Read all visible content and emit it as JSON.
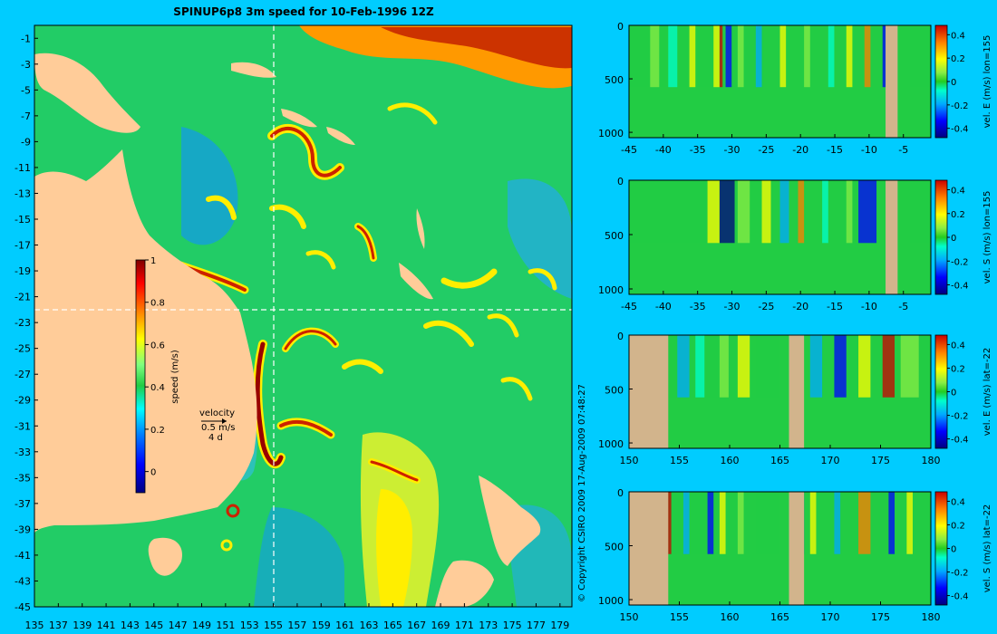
{
  "title": "SPINUP6p8 3m speed for 10-Feb-1996 12Z",
  "copyright": "© Copyright CSIRO 2009   17-Aug-2009 07:48:27",
  "colors": {
    "background": "#00ccff",
    "land": "#ffcc99",
    "section_land": "#d2b48c",
    "colormap": [
      "#00007f",
      "#0000ff",
      "#007fff",
      "#00ffff",
      "#22cc44",
      "#7fff7f",
      "#ffff00",
      "#ff7f00",
      "#ff0000",
      "#7f0000"
    ]
  },
  "chart_data": [
    {
      "type": "heatmap",
      "name": "map",
      "title": "SPINUP6p8 3m speed for 10-Feb-1996 12Z",
      "x_ticks": [
        "135",
        "137",
        "139",
        "141",
        "143",
        "145",
        "147",
        "149",
        "151",
        "153",
        "155",
        "157",
        "159",
        "161",
        "163",
        "165",
        "167",
        "169",
        "171",
        "173",
        "175",
        "177",
        "179"
      ],
      "y_ticks": [
        "-1",
        "-3",
        "-5",
        "-7",
        "-9",
        "-11",
        "-13",
        "-15",
        "-17",
        "-19",
        "-21",
        "-23",
        "-25",
        "-27",
        "-29",
        "-31",
        "-33",
        "-35",
        "-37",
        "-39",
        "-41",
        "-43",
        "-45"
      ],
      "xlim": [
        135,
        180
      ],
      "ylim": [
        -45,
        0
      ],
      "colorbar": {
        "label": "speed (m/s)",
        "ticks": [
          "0",
          "0.2",
          "0.4",
          "0.6",
          "0.8",
          "1"
        ],
        "range": [
          -0.1,
          1
        ]
      },
      "velocity_legend": {
        "line1": "velocity",
        "line2": "0.5 m/s",
        "line3": "4 d"
      },
      "section_lines": {
        "lon": 155,
        "lat": -22
      }
    },
    {
      "type": "heatmap",
      "name": "section-1",
      "cbar_label": "vel. E (m/s) lon=155",
      "x_ticks": [
        "-45",
        "-40",
        "-35",
        "-30",
        "-25",
        "-20",
        "-15",
        "-10",
        "-5"
      ],
      "y_ticks": [
        "0",
        "500",
        "1000"
      ],
      "cbar_ticks": [
        "0.4",
        "0.2",
        "0",
        "-0.2",
        "-0.4"
      ]
    },
    {
      "type": "heatmap",
      "name": "section-2",
      "cbar_label": "vel. S (m/s) lon=155",
      "x_ticks": [
        "-45",
        "-40",
        "-35",
        "-30",
        "-25",
        "-20",
        "-15",
        "-10",
        "-5"
      ],
      "y_ticks": [
        "0",
        "500",
        "1000"
      ],
      "cbar_ticks": [
        "0.4",
        "0.2",
        "0",
        "-0.2",
        "-0.4"
      ]
    },
    {
      "type": "heatmap",
      "name": "section-3",
      "cbar_label": "vel. E (m/s) lat=-22",
      "x_ticks": [
        "150",
        "155",
        "160",
        "165",
        "170",
        "175",
        "180"
      ],
      "y_ticks": [
        "0",
        "500",
        "1000"
      ],
      "cbar_ticks": [
        "0.4",
        "0.2",
        "0",
        "-0.2",
        "-0.4"
      ]
    },
    {
      "type": "heatmap",
      "name": "section-4",
      "cbar_label": "vel. S (m/s) lat=-22",
      "x_ticks": [
        "150",
        "155",
        "160",
        "165",
        "170",
        "175",
        "180"
      ],
      "y_ticks": [
        "0",
        "500",
        "1000"
      ],
      "cbar_ticks": [
        "0.4",
        "0.2",
        "0",
        "-0.2",
        "-0.4"
      ]
    }
  ]
}
